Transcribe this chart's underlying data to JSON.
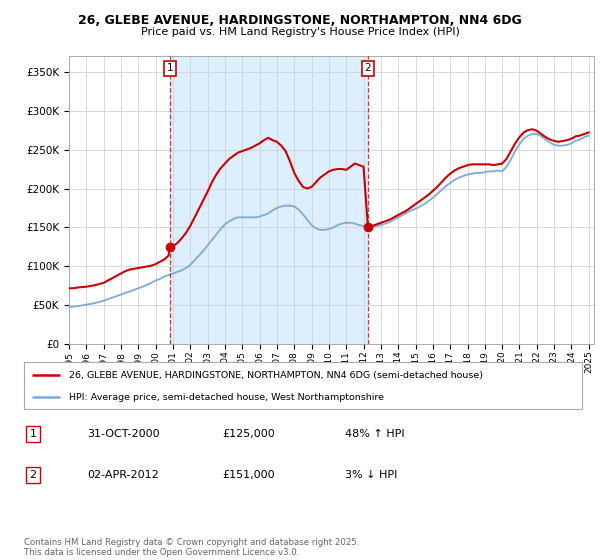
{
  "title_line1": "26, GLEBE AVENUE, HARDINGSTONE, NORTHAMPTON, NN4 6DG",
  "title_line2": "Price paid vs. HM Land Registry's House Price Index (HPI)",
  "ylim": [
    0,
    370000
  ],
  "yticks": [
    0,
    50000,
    100000,
    150000,
    200000,
    250000,
    300000,
    350000
  ],
  "ytick_labels": [
    "£0",
    "£50K",
    "£100K",
    "£150K",
    "£200K",
    "£250K",
    "£300K",
    "£350K"
  ],
  "plot_bg_color": "#ffffff",
  "shaded_bg_color": "#ddeeff",
  "grid_color": "#dddddd",
  "red_color": "#cc0000",
  "blue_color": "#7aabdb",
  "legend_label_red": "26, GLEBE AVENUE, HARDINGSTONE, NORTHAMPTON, NN4 6DG (semi-detached house)",
  "legend_label_blue": "HPI: Average price, semi-detached house, West Northamptonshire",
  "purchase1_date": "31-OCT-2000",
  "purchase1_price": "£125,000",
  "purchase1_pct": "48% ↑ HPI",
  "purchase2_date": "02-APR-2012",
  "purchase2_price": "£151,000",
  "purchase2_pct": "3% ↓ HPI",
  "footer": "Contains HM Land Registry data © Crown copyright and database right 2025.\nThis data is licensed under the Open Government Licence v3.0.",
  "vline1_x": 2000.83,
  "vline2_x": 2012.25,
  "marker1_x": 2000.83,
  "marker1_y": 125000,
  "marker2_x": 2012.25,
  "marker2_y": 151000,
  "xmin": 1995,
  "xmax": 2025.3,
  "hpi_years": [
    1995.0,
    1995.25,
    1995.5,
    1995.75,
    1996.0,
    1996.25,
    1996.5,
    1996.75,
    1997.0,
    1997.25,
    1997.5,
    1997.75,
    1998.0,
    1998.25,
    1998.5,
    1998.75,
    1999.0,
    1999.25,
    1999.5,
    1999.75,
    2000.0,
    2000.25,
    2000.5,
    2000.75,
    2001.0,
    2001.25,
    2001.5,
    2001.75,
    2002.0,
    2002.25,
    2002.5,
    2002.75,
    2003.0,
    2003.25,
    2003.5,
    2003.75,
    2004.0,
    2004.25,
    2004.5,
    2004.75,
    2005.0,
    2005.25,
    2005.5,
    2005.75,
    2006.0,
    2006.25,
    2006.5,
    2006.75,
    2007.0,
    2007.25,
    2007.5,
    2007.75,
    2008.0,
    2008.25,
    2008.5,
    2008.75,
    2009.0,
    2009.25,
    2009.5,
    2009.75,
    2010.0,
    2010.25,
    2010.5,
    2010.75,
    2011.0,
    2011.25,
    2011.5,
    2011.75,
    2012.0,
    2012.25,
    2012.5,
    2012.75,
    2013.0,
    2013.25,
    2013.5,
    2013.75,
    2014.0,
    2014.25,
    2014.5,
    2014.75,
    2015.0,
    2015.25,
    2015.5,
    2015.75,
    2016.0,
    2016.25,
    2016.5,
    2016.75,
    2017.0,
    2017.25,
    2017.5,
    2017.75,
    2018.0,
    2018.25,
    2018.5,
    2018.75,
    2019.0,
    2019.25,
    2019.5,
    2019.75,
    2020.0,
    2020.25,
    2020.5,
    2020.75,
    2021.0,
    2021.25,
    2021.5,
    2021.75,
    2022.0,
    2022.25,
    2022.5,
    2022.75,
    2023.0,
    2023.25,
    2023.5,
    2023.75,
    2024.0,
    2024.25,
    2024.5,
    2024.75,
    2025.0
  ],
  "hpi_values": [
    48000,
    48500,
    49000,
    50000,
    51000,
    52000,
    53000,
    54500,
    56000,
    58000,
    60000,
    62000,
    64000,
    66000,
    68000,
    70000,
    72000,
    74000,
    76500,
    79000,
    82000,
    84000,
    87000,
    89000,
    91000,
    93000,
    95000,
    98000,
    102000,
    108000,
    114000,
    120000,
    127000,
    134000,
    141000,
    148000,
    154000,
    158000,
    161000,
    163000,
    163000,
    163000,
    163000,
    163000,
    164000,
    166000,
    168000,
    172000,
    175000,
    177000,
    178000,
    178000,
    177000,
    173000,
    167000,
    160000,
    153000,
    149000,
    147000,
    147000,
    148000,
    150000,
    153000,
    155000,
    156000,
    156000,
    155000,
    153000,
    152000,
    151000,
    151000,
    152000,
    153000,
    155000,
    157000,
    160000,
    163000,
    166000,
    169000,
    172000,
    174000,
    177000,
    180000,
    184000,
    188000,
    193000,
    198000,
    203000,
    207000,
    211000,
    214000,
    216000,
    218000,
    219000,
    220000,
    220000,
    221000,
    222000,
    222000,
    223000,
    222000,
    228000,
    237000,
    248000,
    257000,
    264000,
    268000,
    270000,
    270000,
    267000,
    263000,
    259000,
    256000,
    255000,
    255000,
    256000,
    258000,
    261000,
    263000,
    266000,
    268000
  ],
  "red_years": [
    1995.0,
    1995.25,
    1995.5,
    1995.75,
    1996.0,
    1996.25,
    1996.5,
    1996.75,
    1997.0,
    1997.25,
    1997.5,
    1997.75,
    1998.0,
    1998.25,
    1998.5,
    1998.75,
    1999.0,
    1999.25,
    1999.5,
    1999.75,
    2000.0,
    2000.25,
    2000.5,
    2000.75,
    2000.83,
    2000.84,
    2001.0,
    2001.25,
    2001.5,
    2001.75,
    2002.0,
    2002.25,
    2002.5,
    2002.75,
    2003.0,
    2003.25,
    2003.5,
    2003.75,
    2004.0,
    2004.25,
    2004.5,
    2004.75,
    2005.0,
    2005.25,
    2005.5,
    2005.75,
    2006.0,
    2006.25,
    2006.5,
    2006.75,
    2007.0,
    2007.25,
    2007.5,
    2007.75,
    2008.0,
    2008.25,
    2008.5,
    2008.75,
    2009.0,
    2009.25,
    2009.5,
    2009.75,
    2010.0,
    2010.25,
    2010.5,
    2010.75,
    2011.0,
    2011.25,
    2011.5,
    2011.75,
    2012.0,
    2012.25,
    2012.26,
    2012.5,
    2012.75,
    2013.0,
    2013.25,
    2013.5,
    2013.75,
    2014.0,
    2014.25,
    2014.5,
    2014.75,
    2015.0,
    2015.25,
    2015.5,
    2015.75,
    2016.0,
    2016.25,
    2016.5,
    2016.75,
    2017.0,
    2017.25,
    2017.5,
    2017.75,
    2018.0,
    2018.25,
    2018.5,
    2018.75,
    2019.0,
    2019.25,
    2019.5,
    2019.75,
    2020.0,
    2020.25,
    2020.5,
    2020.75,
    2021.0,
    2021.25,
    2021.5,
    2021.75,
    2022.0,
    2022.25,
    2022.5,
    2022.75,
    2023.0,
    2023.25,
    2023.5,
    2023.75,
    2024.0,
    2024.25,
    2024.5,
    2024.75,
    2025.0
  ],
  "red_values": [
    72000,
    72000,
    73000,
    73500,
    74000,
    75000,
    76000,
    77500,
    79000,
    82000,
    85000,
    88000,
    91000,
    94000,
    96000,
    97000,
    98000,
    99000,
    100000,
    101000,
    103000,
    106000,
    109000,
    114000,
    125000,
    125000,
    126000,
    130000,
    136000,
    143000,
    152000,
    163000,
    174000,
    185000,
    196000,
    208000,
    218000,
    226000,
    232000,
    238000,
    242000,
    246000,
    248000,
    250000,
    252000,
    255000,
    258000,
    262000,
    265000,
    262000,
    260000,
    255000,
    248000,
    235000,
    220000,
    210000,
    202000,
    200000,
    202000,
    208000,
    214000,
    218000,
    222000,
    224000,
    225000,
    225000,
    224000,
    228000,
    232000,
    230000,
    228000,
    151000,
    151000,
    152000,
    154000,
    156000,
    158000,
    160000,
    163000,
    166000,
    169000,
    172000,
    176000,
    180000,
    184000,
    188000,
    192000,
    197000,
    202000,
    208000,
    214000,
    219000,
    223000,
    226000,
    228000,
    230000,
    231000,
    231000,
    231000,
    231000,
    231000,
    230000,
    231000,
    232000,
    238000,
    248000,
    258000,
    266000,
    272000,
    275000,
    276000,
    274000,
    270000,
    266000,
    263000,
    261000,
    260000,
    261000,
    262000,
    264000,
    267000,
    268000,
    270000,
    272000
  ]
}
